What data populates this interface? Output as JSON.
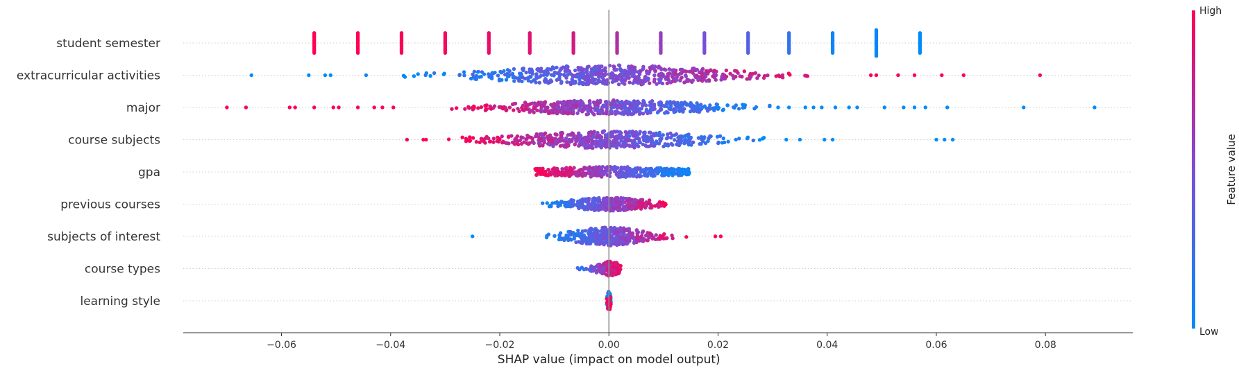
{
  "chart_data": {
    "type": "scatter",
    "subtype": "shap-beeswarm-summary",
    "title": "",
    "xlabel": "SHAP value (impact on model output)",
    "ylabel": "",
    "xlim": [
      -0.078,
      0.096
    ],
    "x_ticks": [
      -0.06,
      -0.04,
      -0.02,
      0.0,
      0.02,
      0.04,
      0.06,
      0.08
    ],
    "x_tick_labels": [
      "−0.06",
      "−0.04",
      "−0.02",
      "0.00",
      "0.02",
      "0.04",
      "0.06",
      "0.08"
    ],
    "zero_line": 0.0,
    "grid": false,
    "colorbar": {
      "title": "Feature value",
      "high_label": "High",
      "low_label": "Low",
      "low_color": "#008bfb",
      "mid_color": "#7c4dd6",
      "high_color": "#ff0052",
      "placement": "right"
    },
    "features": [
      {
        "name": "student semester",
        "discrete": true,
        "clusters": [
          {
            "x": -0.054,
            "value": 1.0,
            "n": 14
          },
          {
            "x": -0.046,
            "value": 1.0,
            "n": 14
          },
          {
            "x": -0.038,
            "value": 0.98,
            "n": 14
          },
          {
            "x": -0.03,
            "value": 0.96,
            "n": 14
          },
          {
            "x": -0.022,
            "value": 0.92,
            "n": 14
          },
          {
            "x": -0.0145,
            "value": 0.88,
            "n": 14
          },
          {
            "x": -0.0065,
            "value": 0.82,
            "n": 14
          },
          {
            "x": 0.0015,
            "value": 0.7,
            "n": 14
          },
          {
            "x": 0.0095,
            "value": 0.6,
            "n": 14
          },
          {
            "x": 0.0175,
            "value": 0.48,
            "n": 14
          },
          {
            "x": 0.0255,
            "value": 0.34,
            "n": 14
          },
          {
            "x": 0.033,
            "value": 0.2,
            "n": 14
          },
          {
            "x": 0.041,
            "value": 0.06,
            "n": 14
          },
          {
            "x": 0.049,
            "value": 0.03,
            "n": 18
          },
          {
            "x": 0.057,
            "value": 0.0,
            "n": 14
          }
        ]
      },
      {
        "name": "extracurricular activities",
        "continuous": {
          "min": -0.04,
          "max": 0.045,
          "center": 0.0,
          "spread": 0.013,
          "count": 600,
          "max_height": 13,
          "direction": 1
        },
        "outliers": [
          {
            "x": -0.0655,
            "value": 0.0
          },
          {
            "x": -0.055,
            "value": 0.0
          },
          {
            "x": -0.052,
            "value": 0.0
          },
          {
            "x": -0.051,
            "value": 0.0
          },
          {
            "x": -0.0445,
            "value": 0.05
          },
          {
            "x": 0.048,
            "value": 1.0
          },
          {
            "x": 0.049,
            "value": 1.0
          },
          {
            "x": 0.053,
            "value": 1.0
          },
          {
            "x": 0.056,
            "value": 1.0
          },
          {
            "x": 0.061,
            "value": 1.0
          },
          {
            "x": 0.065,
            "value": 1.0
          },
          {
            "x": 0.079,
            "value": 1.0
          }
        ]
      },
      {
        "name": "major",
        "continuous": {
          "min": -0.03,
          "max": 0.03,
          "center": 0.0,
          "spread": 0.012,
          "count": 520,
          "max_height": 9,
          "direction": -1
        },
        "outliers": [
          {
            "x": -0.07,
            "value": 1.0
          },
          {
            "x": -0.0665,
            "value": 1.0
          },
          {
            "x": -0.0585,
            "value": 1.0
          },
          {
            "x": -0.0575,
            "value": 1.0
          },
          {
            "x": -0.054,
            "value": 1.0
          },
          {
            "x": -0.0505,
            "value": 1.0
          },
          {
            "x": -0.0495,
            "value": 1.0
          },
          {
            "x": -0.046,
            "value": 1.0
          },
          {
            "x": -0.043,
            "value": 1.0
          },
          {
            "x": -0.0415,
            "value": 1.0
          },
          {
            "x": -0.0395,
            "value": 1.0
          },
          {
            "x": 0.031,
            "value": 0.0
          },
          {
            "x": 0.033,
            "value": 0.0
          },
          {
            "x": 0.036,
            "value": 0.0
          },
          {
            "x": 0.0375,
            "value": 0.0
          },
          {
            "x": 0.039,
            "value": 0.0
          },
          {
            "x": 0.0415,
            "value": 0.0
          },
          {
            "x": 0.044,
            "value": 0.0
          },
          {
            "x": 0.0455,
            "value": 0.0
          },
          {
            "x": 0.0505,
            "value": 0.0
          },
          {
            "x": 0.054,
            "value": 0.0
          },
          {
            "x": 0.056,
            "value": 0.0
          },
          {
            "x": 0.058,
            "value": 0.0
          },
          {
            "x": 0.062,
            "value": 0.0
          },
          {
            "x": 0.076,
            "value": 0.0
          },
          {
            "x": 0.089,
            "value": 0.0
          }
        ]
      },
      {
        "name": "course subjects",
        "continuous": {
          "min": -0.03,
          "max": 0.031,
          "center": 0.0,
          "spread": 0.011,
          "count": 560,
          "max_height": 11,
          "direction": -1
        },
        "outliers": [
          {
            "x": -0.037,
            "value": 1.0
          },
          {
            "x": -0.034,
            "value": 1.0
          },
          {
            "x": -0.0335,
            "value": 1.0
          },
          {
            "x": 0.0325,
            "value": 0.0
          },
          {
            "x": 0.035,
            "value": 0.0
          },
          {
            "x": 0.0395,
            "value": 0.0
          },
          {
            "x": 0.041,
            "value": 0.0
          },
          {
            "x": 0.06,
            "value": 0.0
          },
          {
            "x": 0.0615,
            "value": 0.0
          },
          {
            "x": 0.063,
            "value": 0.0
          }
        ]
      },
      {
        "name": "gpa",
        "continuous": {
          "min": -0.0135,
          "max": 0.0148,
          "center": 0.0005,
          "spread": 0.009,
          "count": 420,
          "max_height": 6,
          "direction": -1,
          "flat": true
        },
        "outliers": []
      },
      {
        "name": "previous courses",
        "continuous": {
          "min": -0.013,
          "max": 0.012,
          "center": 0.0,
          "spread": 0.005,
          "count": 380,
          "max_height": 8,
          "direction": 1
        },
        "outliers": []
      },
      {
        "name": "subjects of interest",
        "continuous": {
          "min": -0.012,
          "max": 0.0145,
          "center": 0.0,
          "spread": 0.0045,
          "count": 380,
          "max_height": 12,
          "direction": 1
        },
        "outliers": [
          {
            "x": -0.025,
            "value": 0.0
          },
          {
            "x": 0.0195,
            "value": 1.0
          },
          {
            "x": 0.0205,
            "value": 1.0
          }
        ]
      },
      {
        "name": "course types",
        "continuous": {
          "min": -0.007,
          "max": 0.0022,
          "center": 0.0,
          "spread": 0.0015,
          "count": 140,
          "max_height": 9,
          "direction": 1
        },
        "outliers": []
      },
      {
        "name": "learning style",
        "continuous": {
          "min": -0.0004,
          "max": 0.0004,
          "center": 0.0,
          "spread": 0.0002,
          "count": 110,
          "max_height": 13,
          "direction": 1,
          "narrow": true
        },
        "outliers": []
      }
    ]
  }
}
